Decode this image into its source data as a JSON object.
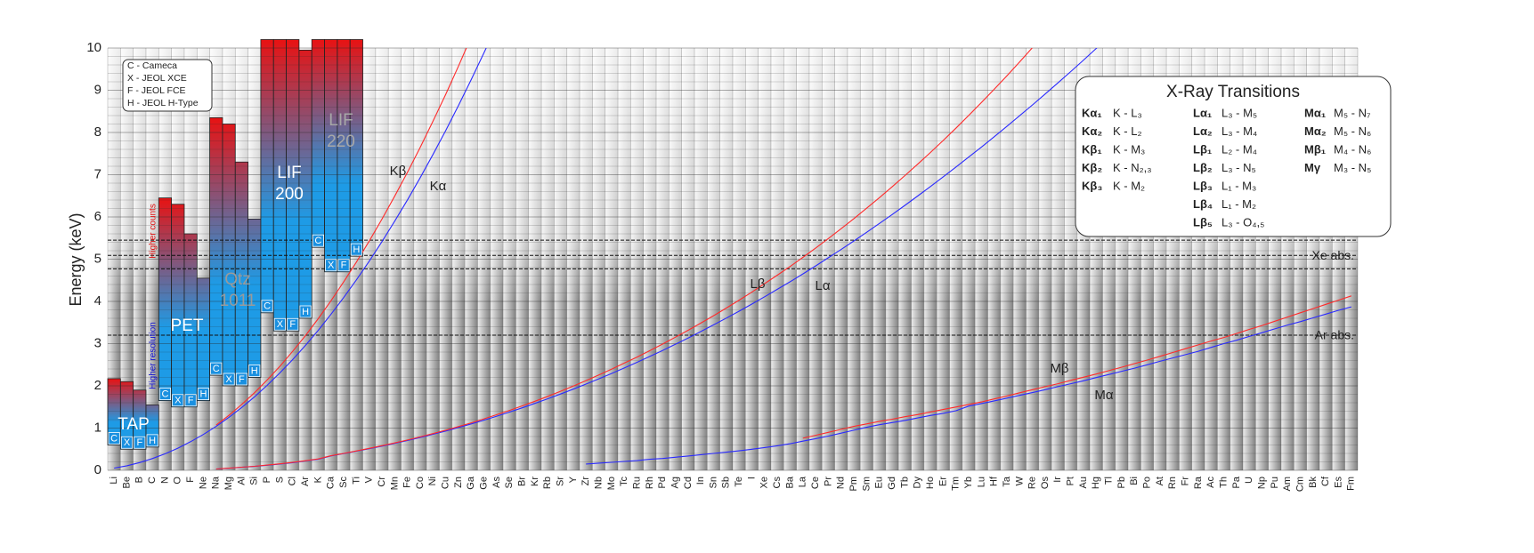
{
  "chart_data": {
    "type": "line",
    "ylabel": "Energy (keV)",
    "ylim": [
      0,
      10
    ],
    "yticks": [
      0,
      1,
      2,
      3,
      4,
      5,
      6,
      7,
      8,
      9,
      10
    ],
    "grid": true,
    "categories": [
      "Li",
      "Be",
      "B",
      "C",
      "N",
      "O",
      "F",
      "Ne",
      "Na",
      "Mg",
      "Al",
      "Si",
      "P",
      "S",
      "Cl",
      "Ar",
      "K",
      "Ca",
      "Sc",
      "Ti",
      "V",
      "Cr",
      "Mn",
      "Fe",
      "Co",
      "Ni",
      "Cu",
      "Zn",
      "Ga",
      "Ge",
      "As",
      "Se",
      "Br",
      "Kr",
      "Rb",
      "Sr",
      "Y",
      "Zr",
      "Nb",
      "Mo",
      "Tc",
      "Ru",
      "Rh",
      "Pd",
      "Ag",
      "Cd",
      "In",
      "Sn",
      "Sb",
      "Te",
      "I",
      "Xe",
      "Cs",
      "Ba",
      "La",
      "Ce",
      "Pr",
      "Nd",
      "Pm",
      "Sm",
      "Eu",
      "Gd",
      "Tb",
      "Dy",
      "Ho",
      "Er",
      "Tm",
      "Yb",
      "Lu",
      "Hf",
      "Ta",
      "W",
      "Re",
      "Os",
      "Ir",
      "Pt",
      "Au",
      "Hg",
      "Tl",
      "Pb",
      "Bi",
      "Po",
      "At",
      "Rn",
      "Fr",
      "Ra",
      "Ac",
      "Th",
      "Pa",
      "U",
      "Np",
      "Pu",
      "Am",
      "Cm",
      "Bk",
      "Cf",
      "Es",
      "Fm"
    ],
    "series": [
      {
        "name": "Kα",
        "color": "#2a2aff",
        "values": [
          0.052,
          0.108,
          0.183,
          0.277,
          0.392,
          0.525,
          0.677,
          0.849,
          1.041,
          1.254,
          1.487,
          1.74,
          2.013,
          2.307,
          2.622,
          2.957,
          3.314,
          3.692,
          4.091,
          4.511,
          4.952,
          5.415,
          5.899,
          6.404,
          6.93,
          7.478,
          8.048,
          8.639,
          9.252,
          9.886,
          10.543,
          null,
          null,
          null,
          null,
          null,
          null,
          null,
          null,
          null,
          null,
          null,
          null,
          null,
          null,
          null,
          null,
          null,
          null,
          null,
          null,
          null,
          null,
          null,
          null,
          null,
          null,
          null,
          null,
          null,
          null,
          null,
          null,
          null,
          null,
          null,
          null,
          null,
          null,
          null,
          null,
          null,
          null,
          null,
          null,
          null,
          null,
          null,
          null,
          null,
          null,
          null,
          null,
          null,
          null,
          null,
          null,
          null,
          null,
          null,
          null,
          null,
          null,
          null,
          null,
          null,
          null,
          null
        ]
      },
      {
        "name": "Kβ",
        "color": "#ff2a2a",
        "values": [
          null,
          null,
          null,
          null,
          null,
          null,
          null,
          null,
          1.071,
          1.302,
          1.557,
          1.836,
          2.139,
          2.464,
          2.816,
          3.19,
          3.59,
          4.013,
          4.461,
          4.932,
          5.427,
          5.947,
          6.49,
          7.058,
          7.649,
          8.265,
          8.905,
          9.572,
          10.264,
          null,
          null,
          null,
          null,
          null,
          null,
          null,
          null,
          null,
          null,
          null,
          null,
          null,
          null,
          null,
          null,
          null,
          null,
          null,
          null,
          null,
          null,
          null,
          null,
          null,
          null,
          null,
          null,
          null,
          null,
          null,
          null,
          null,
          null,
          null,
          null,
          null,
          null,
          null,
          null,
          null,
          null,
          null,
          null,
          null,
          null,
          null,
          null,
          null,
          null,
          null,
          null,
          null,
          null,
          null,
          null,
          null,
          null,
          null,
          null,
          null,
          null,
          null,
          null,
          null,
          null,
          null,
          null,
          null
        ]
      },
      {
        "name": "Lα",
        "color": "#2a2aff",
        "values": [
          null,
          null,
          null,
          null,
          null,
          null,
          null,
          null,
          0.03,
          0.049,
          0.072,
          0.092,
          0.12,
          0.149,
          0.182,
          0.22,
          0.262,
          0.341,
          0.395,
          0.452,
          0.511,
          0.573,
          0.637,
          0.705,
          0.776,
          0.852,
          0.93,
          1.012,
          1.098,
          1.188,
          1.282,
          1.379,
          1.48,
          1.586,
          1.694,
          1.806,
          1.922,
          2.042,
          2.166,
          2.293,
          2.424,
          2.558,
          2.696,
          2.838,
          2.984,
          3.133,
          3.286,
          3.444,
          3.604,
          3.769,
          3.937,
          4.109,
          4.286,
          4.466,
          4.651,
          4.84,
          5.034,
          5.23,
          5.432,
          5.636,
          5.846,
          6.057,
          6.273,
          6.495,
          6.72,
          6.949,
          7.18,
          7.416,
          7.655,
          7.899,
          8.146,
          8.398,
          8.652,
          8.911,
          9.175,
          9.442,
          9.713,
          9.989,
          10.268,
          null,
          null,
          null,
          null,
          null,
          null,
          null,
          null,
          null,
          null,
          null,
          null,
          null,
          null,
          null,
          null,
          null,
          null,
          null
        ]
      },
      {
        "name": "Lβ",
        "color": "#ff2a2a",
        "values": [
          null,
          null,
          null,
          null,
          null,
          null,
          null,
          null,
          0.031,
          0.05,
          0.074,
          0.095,
          0.124,
          0.154,
          0.188,
          0.227,
          0.27,
          0.345,
          0.4,
          0.458,
          0.519,
          0.583,
          0.649,
          0.718,
          0.791,
          0.869,
          0.95,
          1.035,
          1.125,
          1.219,
          1.317,
          1.419,
          1.526,
          1.636,
          1.752,
          1.872,
          1.996,
          2.124,
          2.257,
          2.395,
          2.538,
          2.683,
          2.834,
          2.99,
          3.151,
          3.316,
          3.487,
          3.662,
          3.843,
          4.029,
          4.22,
          4.422,
          4.62,
          4.828,
          5.043,
          5.262,
          5.489,
          5.722,
          5.961,
          6.206,
          6.456,
          6.713,
          6.979,
          7.248,
          7.526,
          7.811,
          8.102,
          8.402,
          8.71,
          9.023,
          9.343,
          9.672,
          10.01,
          null,
          null,
          null,
          null,
          null,
          null,
          null,
          null,
          null,
          null,
          null,
          null,
          null,
          null,
          null,
          null,
          null,
          null,
          null,
          null,
          null,
          null,
          null,
          null,
          null
        ]
      },
      {
        "name": "Mα",
        "color": "#2a2aff",
        "values": [
          null,
          null,
          null,
          null,
          null,
          null,
          null,
          null,
          null,
          null,
          null,
          null,
          null,
          null,
          null,
          null,
          null,
          null,
          null,
          null,
          null,
          null,
          null,
          null,
          null,
          null,
          null,
          null,
          null,
          null,
          null,
          null,
          null,
          null,
          null,
          null,
          null,
          0.15,
          0.17,
          0.19,
          0.21,
          0.23,
          0.26,
          0.28,
          0.31,
          0.34,
          0.37,
          0.4,
          0.43,
          0.46,
          0.5,
          0.54,
          0.58,
          0.63,
          0.69,
          0.75,
          0.81,
          0.88,
          0.95,
          1.02,
          1.08,
          1.13,
          1.18,
          1.24,
          1.3,
          1.35,
          1.41,
          1.52,
          1.58,
          1.645,
          1.71,
          1.775,
          1.84,
          1.91,
          1.98,
          2.05,
          2.12,
          2.195,
          2.27,
          2.345,
          2.42,
          2.5,
          2.58,
          2.66,
          2.74,
          2.82,
          2.91,
          3.0,
          3.08,
          3.17,
          3.26,
          3.35,
          3.44,
          3.52,
          3.61,
          3.7,
          3.79,
          3.87
        ]
      },
      {
        "name": "Mβ",
        "color": "#ff2a2a",
        "values": [
          null,
          null,
          null,
          null,
          null,
          null,
          null,
          null,
          null,
          null,
          null,
          null,
          null,
          null,
          null,
          null,
          null,
          null,
          null,
          null,
          null,
          null,
          null,
          null,
          null,
          null,
          null,
          null,
          null,
          null,
          null,
          null,
          null,
          null,
          null,
          null,
          null,
          null,
          null,
          null,
          null,
          null,
          null,
          null,
          null,
          null,
          null,
          null,
          null,
          null,
          null,
          null,
          null,
          null,
          0.76,
          0.83,
          0.9,
          0.97,
          1.04,
          1.1,
          1.16,
          1.21,
          1.27,
          1.32,
          1.38,
          1.44,
          1.5,
          1.56,
          1.62,
          1.69,
          1.76,
          1.835,
          1.91,
          1.98,
          2.05,
          2.13,
          2.205,
          2.28,
          2.36,
          2.443,
          2.526,
          2.61,
          2.7,
          2.79,
          2.88,
          2.97,
          3.06,
          3.146,
          3.24,
          3.336,
          3.43,
          3.53,
          3.63,
          3.73,
          3.83,
          3.93,
          4.03,
          4.13
        ]
      }
    ],
    "spectrometers": [
      "C",
      "X",
      "F",
      "H"
    ],
    "spectrometer_legend": [
      "C - Cameca",
      "X - JEOL XCE",
      "F - JEOL FCE",
      "H - JEOL H-Type"
    ],
    "crystals": [
      {
        "name": [
          "TAP"
        ],
        "ranges": [
          [
            0.6,
            2.17
          ],
          [
            0.5,
            2.1
          ],
          [
            0.5,
            1.9
          ],
          [
            0.55,
            1.55
          ]
        ]
      },
      {
        "name": [
          "PET"
        ],
        "ranges": [
          [
            1.65,
            6.45
          ],
          [
            1.5,
            6.3
          ],
          [
            1.5,
            5.6
          ],
          [
            1.65,
            4.55
          ]
        ]
      },
      {
        "name": [
          "Qtz",
          "1011"
        ],
        "ranges": [
          [
            2.25,
            8.35
          ],
          [
            2.0,
            8.2
          ],
          [
            2.0,
            7.3
          ],
          [
            2.2,
            5.95
          ]
        ]
      },
      {
        "name": [
          "LIF",
          "200"
        ],
        "ranges": [
          [
            3.73,
            10.2
          ],
          [
            3.3,
            10.2
          ],
          [
            3.3,
            10.2
          ],
          [
            3.6,
            9.95
          ]
        ]
      },
      {
        "name": [
          "LIF",
          "220"
        ],
        "ranges": [
          [
            5.28,
            10.2
          ],
          [
            4.7,
            10.2
          ],
          [
            4.7,
            10.2
          ],
          [
            5.07,
            10.2
          ]
        ]
      }
    ],
    "notes": [
      "Higher counts",
      "Higher resolution"
    ],
    "absorption": [
      {
        "label": "Xe abs.",
        "values": [
          5.45,
          5.09,
          4.77
        ]
      },
      {
        "label": "Ar abs.",
        "values": [
          3.2
        ]
      }
    ],
    "transitions": {
      "title": "X-Ray Transitions",
      "columns": [
        [
          [
            "Kα₁",
            "K - L₃"
          ],
          [
            "Kα₂",
            "K - L₂"
          ],
          [
            "Kβ₁",
            "K - M₃"
          ],
          [
            "Kβ₂",
            "K - N₂,₃"
          ],
          [
            "Kβ₃",
            "K - M₂"
          ]
        ],
        [
          [
            "Lα₁",
            "L₃ - M₅"
          ],
          [
            "Lα₂",
            "L₃ - M₄"
          ],
          [
            "Lβ₁",
            "L₂ - M₄"
          ],
          [
            "Lβ₂",
            "L₃ - N₅"
          ],
          [
            "Lβ₃",
            "L₁ - M₃"
          ],
          [
            "Lβ₄",
            "L₁ - M₂"
          ],
          [
            "Lβ₅",
            "L₃ - O₄,₅"
          ]
        ],
        [
          [
            "Mα₁",
            "M₅ - N₇"
          ],
          [
            "Mα₂",
            "M₅ - N₆"
          ],
          [
            "Mβ₁",
            "M₄ - N₆"
          ],
          [
            "Mγ",
            "M₃ - N₅"
          ]
        ]
      ]
    }
  }
}
